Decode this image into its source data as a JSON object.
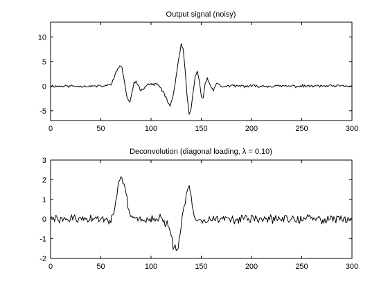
{
  "chart_data": [
    {
      "type": "line",
      "title": "Output signal (noisy)",
      "xlabel": "",
      "ylabel": "",
      "xlim": [
        0,
        300
      ],
      "ylim": [
        -7,
        13
      ],
      "xticks": [
        0,
        50,
        100,
        150,
        200,
        250,
        300
      ],
      "yticks": [
        -5,
        0,
        5,
        10
      ],
      "grid": false,
      "line_color": "#000000",
      "series": [
        {
          "noise_amplitude": 0.22,
          "points": [
            [
              0,
              0
            ],
            [
              55,
              0
            ],
            [
              60,
              0.5
            ],
            [
              63,
              1.5
            ],
            [
              66,
              3.2
            ],
            [
              69,
              4.2
            ],
            [
              71,
              3.8
            ],
            [
              73,
              1.5
            ],
            [
              75,
              -1.2
            ],
            [
              77,
              -2.8
            ],
            [
              79,
              -3.2
            ],
            [
              81,
              -1.5
            ],
            [
              83,
              0.5
            ],
            [
              85,
              1.0
            ],
            [
              87,
              0.3
            ],
            [
              89,
              -0.6
            ],
            [
              91,
              -0.8
            ],
            [
              93,
              -0.3
            ],
            [
              96,
              0.4
            ],
            [
              100,
              0.3
            ],
            [
              104,
              0.5
            ],
            [
              107,
              0.2
            ],
            [
              110,
              -0.5
            ],
            [
              113,
              -1.5
            ],
            [
              116,
              -3.0
            ],
            [
              119,
              -4.0
            ],
            [
              122,
              -2.0
            ],
            [
              125,
              2.0
            ],
            [
              128,
              6.0
            ],
            [
              130,
              8.5
            ],
            [
              132,
              7.5
            ],
            [
              134,
              3.0
            ],
            [
              136,
              -2.5
            ],
            [
              138,
              -5.8
            ],
            [
              140,
              -4.5
            ],
            [
              142,
              -1.0
            ],
            [
              144,
              2.0
            ],
            [
              146,
              2.8
            ],
            [
              148,
              1.0
            ],
            [
              150,
              -2.0
            ],
            [
              152,
              -2.3
            ],
            [
              154,
              0.5
            ],
            [
              156,
              1.6
            ],
            [
              158,
              0.8
            ],
            [
              160,
              -0.5
            ],
            [
              162,
              -0.8
            ],
            [
              164,
              0.3
            ],
            [
              166,
              0.7
            ],
            [
              168,
              0.2
            ],
            [
              170,
              -0.2
            ],
            [
              173,
              0
            ],
            [
              300,
              0
            ]
          ]
        }
      ]
    },
    {
      "type": "line",
      "title": "Deconvolution (diagonal loading, λ = 0.10)",
      "xlabel": "",
      "ylabel": "",
      "xlim": [
        0,
        300
      ],
      "ylim": [
        -2,
        3
      ],
      "xticks": [
        0,
        50,
        100,
        150,
        200,
        250,
        300
      ],
      "yticks": [
        -2,
        -1,
        0,
        1,
        2,
        3
      ],
      "grid": false,
      "line_color": "#000000",
      "series": [
        {
          "noise_amplitude": 0.18,
          "points": [
            [
              0,
              0
            ],
            [
              60,
              0
            ],
            [
              63,
              0.4
            ],
            [
              66,
              1.2
            ],
            [
              68,
              1.7
            ],
            [
              70,
              2.0
            ],
            [
              72,
              1.9
            ],
            [
              74,
              1.5
            ],
            [
              76,
              1.0
            ],
            [
              78,
              0.4
            ],
            [
              80,
              0.1
            ],
            [
              84,
              0
            ],
            [
              110,
              0
            ],
            [
              115,
              -0.2
            ],
            [
              118,
              -0.5
            ],
            [
              120,
              -0.9
            ],
            [
              122,
              -1.3
            ],
            [
              124,
              -1.5
            ],
            [
              126,
              -1.6
            ],
            [
              128,
              -1.2
            ],
            [
              130,
              -0.4
            ],
            [
              132,
              0.3
            ],
            [
              134,
              1.0
            ],
            [
              136,
              1.4
            ],
            [
              138,
              1.5
            ],
            [
              140,
              1.1
            ],
            [
              142,
              0.5
            ],
            [
              144,
              0.1
            ],
            [
              148,
              0
            ],
            [
              300,
              0
            ]
          ]
        }
      ]
    }
  ]
}
